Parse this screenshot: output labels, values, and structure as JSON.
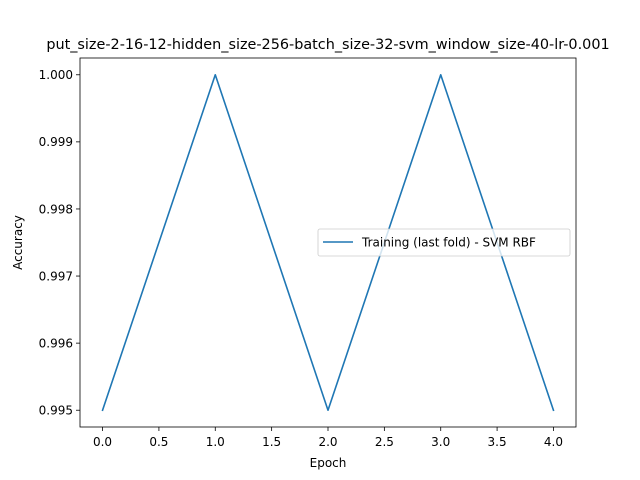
{
  "chart_data": {
    "type": "line",
    "title": "put_size-2-16-12-hidden_size-256-batch_size-32-svm_window_size-40-lr-0.001",
    "xlabel": "Epoch",
    "ylabel": "Accuracy",
    "xlim": [
      -0.2,
      4.2
    ],
    "ylim": [
      0.99475,
      1.00025
    ],
    "xticks": [
      0.0,
      0.5,
      1.0,
      1.5,
      2.0,
      2.5,
      3.0,
      3.5,
      4.0
    ],
    "xtick_labels": [
      "0.0",
      "0.5",
      "1.0",
      "1.5",
      "2.0",
      "2.5",
      "3.0",
      "3.5",
      "4.0"
    ],
    "yticks": [
      0.995,
      0.996,
      0.997,
      0.998,
      0.999,
      1.0
    ],
    "ytick_labels": [
      "0.995",
      "0.996",
      "0.997",
      "0.998",
      "0.999",
      "1.000"
    ],
    "grid": false,
    "legend_position": "center-right",
    "series": [
      {
        "name": "Training (last fold) - SVM RBF",
        "color": "#1f77b4",
        "x": [
          0,
          1,
          2,
          3,
          4
        ],
        "y": [
          0.995,
          1.0,
          0.995,
          1.0,
          0.995
        ]
      }
    ]
  }
}
